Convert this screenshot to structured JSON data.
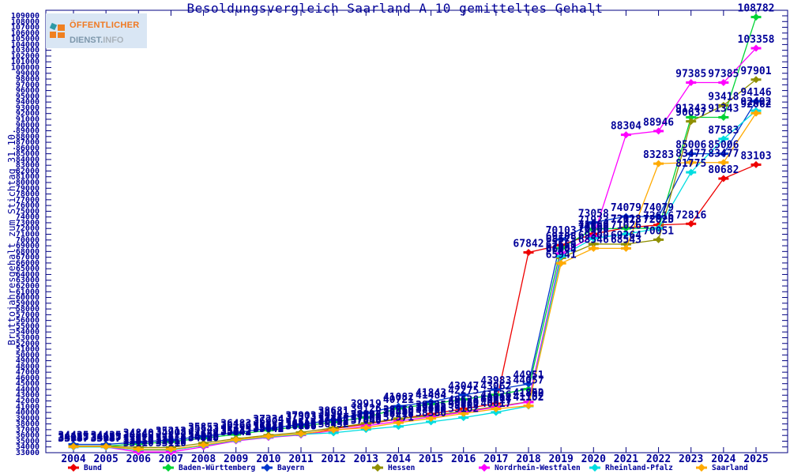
{
  "title": "Besoldungsvergleich Saarland A 10 gemitteltes Gehalt",
  "logo": {
    "text1": "ÖFFENTLICHER",
    "text2": "DIENST.",
    "text3": "INFO"
  },
  "chart_data": {
    "type": "line",
    "x": [
      2004,
      2005,
      2006,
      2007,
      2008,
      2009,
      2010,
      2011,
      2012,
      2013,
      2014,
      2015,
      2016,
      2017,
      2018,
      2019,
      2020,
      2021,
      2022,
      2023,
      2024,
      2025
    ],
    "xlabel": "",
    "ylabel": "Bruttojahresgehalt zum Stichtag 31.10.",
    "ylim": [
      33000,
      109000
    ],
    "ystep": 1000,
    "grid": false,
    "legend_position": "bottom",
    "text_color": "#000099",
    "border_color": "#000080",
    "point_labels": true,
    "series": [
      {
        "name": "Bund",
        "color": "#ee0000",
        "values": [
          34127,
          34127,
          33457,
          33457,
          34262,
          35232,
          35836,
          36096,
          37162,
          37946,
          38860,
          39725,
          40628,
          41526,
          67842,
          69108,
          71060,
          72118,
          72616,
          72816,
          80682,
          83103
        ]
      },
      {
        "name": "Baden-Württemberg",
        "color": "#00d435",
        "values": [
          34135,
          34135,
          34540,
          34908,
          35543,
          36166,
          36905,
          37573,
          38341,
          39126,
          40721,
          41484,
          42275,
          43062,
          44057,
          68575,
          71923,
          72023,
          72023,
          91343,
          91343,
          108782
        ]
      },
      {
        "name": "Bayern",
        "color": "#0038cc",
        "values": [
          34435,
          34435,
          34840,
          35213,
          35853,
          36483,
          37234,
          37903,
          38681,
          39919,
          41082,
          41843,
          43047,
          43983,
          44951,
          70103,
          73058,
          74079,
          74079,
          85006,
          85006,
          94146
        ]
      },
      {
        "name": "Hessen",
        "color": "#8f8f00",
        "values": [
          34127,
          34127,
          33910,
          33910,
          34662,
          35435,
          36043,
          36519,
          37318,
          38102,
          38918,
          39402,
          40229,
          41017,
          41852,
          66904,
          69300,
          69264,
          70051,
          90637,
          93418,
          97901
        ]
      },
      {
        "name": "Nordrhein-Westfalen",
        "color": "#ff00ff",
        "values": [
          33987,
          33987,
          33110,
          33110,
          34020,
          35042,
          35642,
          36086,
          36852,
          37640,
          38480,
          39235,
          40050,
          40904,
          41800,
          67659,
          70660,
          88304,
          88946,
          97385,
          97385,
          103358
        ]
      },
      {
        "name": "Rheinland-Pfalz",
        "color": "#00dde0",
        "values": [
          33987,
          33987,
          33510,
          33510,
          34220,
          35142,
          35742,
          36186,
          36452,
          37040,
          37571,
          38360,
          39102,
          40017,
          41102,
          67159,
          70300,
          71026,
          72020,
          81775,
          87583,
          92492
        ]
      },
      {
        "name": "Saarland",
        "color": "#ffaa00",
        "values": [
          34047,
          34047,
          33610,
          33610,
          34320,
          35242,
          35842,
          36286,
          36952,
          37340,
          38218,
          38960,
          39802,
          40617,
          41152,
          65941,
          68546,
          68543,
          83283,
          83477,
          83477,
          92062
        ]
      }
    ]
  }
}
